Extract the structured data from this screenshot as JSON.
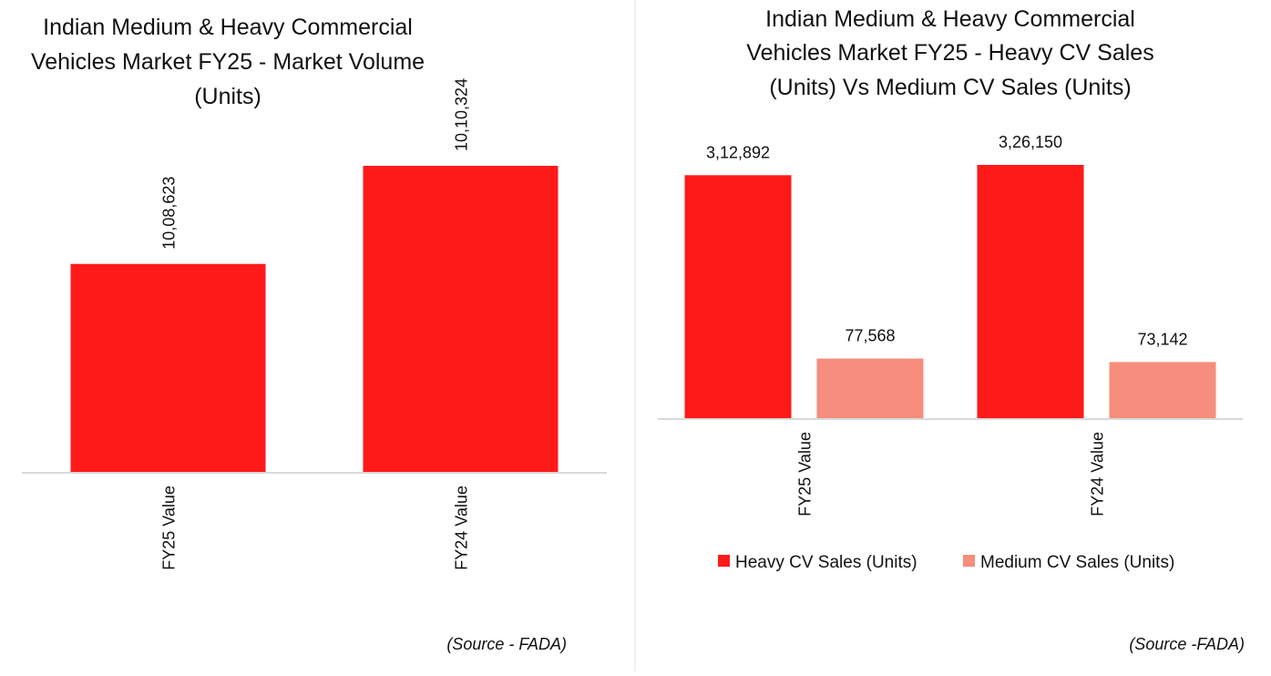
{
  "chart_data": [
    {
      "type": "bar",
      "title_lines": [
        "Indian Medium & Heavy Commercial",
        "Vehicles Market FY25 - Market Volume",
        "(Units)"
      ],
      "categories": [
        "FY25 Value",
        "FY24 Value"
      ],
      "series": [
        {
          "values": [
            1008623,
            1010324
          ],
          "labels": [
            "10,08,623",
            "10,10,324"
          ],
          "color": "#ff1a1a"
        }
      ],
      "ylim": [
        1005000,
        1011000
      ],
      "grid": false,
      "legend": "none",
      "source": "(Source - FADA)"
    },
    {
      "type": "bar",
      "title_lines": [
        "Indian Medium & Heavy Commercial",
        "Vehicles Market FY25 - Heavy CV Sales",
        "(Units) Vs Medium CV Sales (Units)"
      ],
      "categories": [
        "FY25 Value",
        "FY24 Value"
      ],
      "series": [
        {
          "name": "Heavy CV Sales (Units)",
          "values": [
            312892,
            326150
          ],
          "labels": [
            "3,12,892",
            "3,26,150"
          ],
          "color": "#ff1a1a"
        },
        {
          "name": "Medium CV Sales (Units)",
          "values": [
            77568,
            73142
          ],
          "labels": [
            "77,568",
            "73,142"
          ],
          "color": "#f78d7c"
        }
      ],
      "ylim": [
        0,
        340000
      ],
      "grid": false,
      "legend": "bottom",
      "source": "(Source -FADA)"
    }
  ]
}
